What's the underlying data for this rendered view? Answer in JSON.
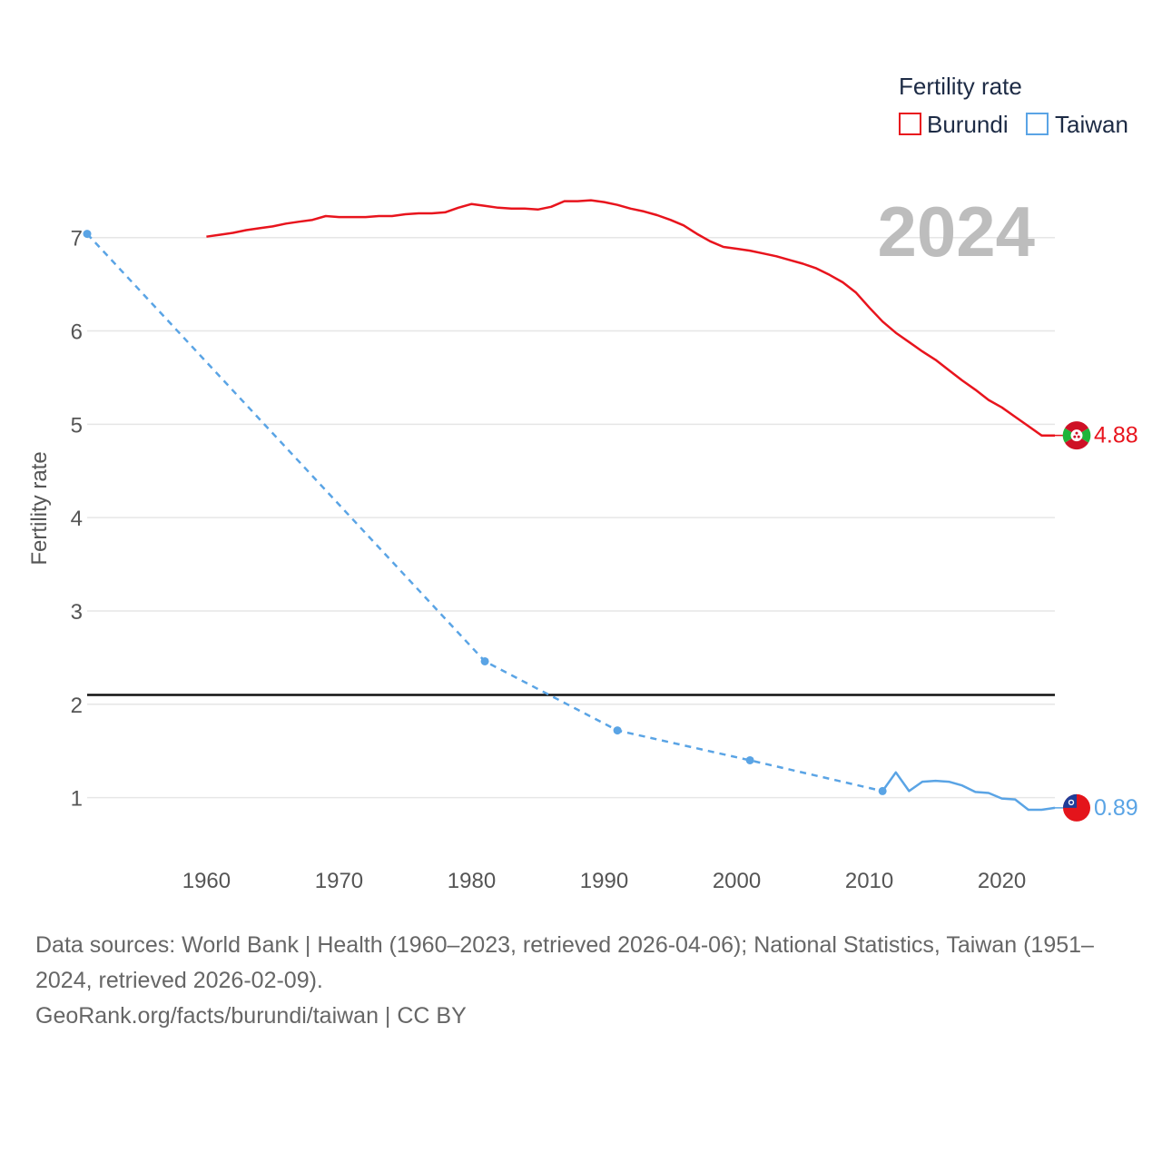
{
  "chart_data": {
    "type": "line",
    "title": "Fertility rate",
    "ylabel": "Fertility rate",
    "xlabel": "",
    "xlim": [
      1951,
      2024
    ],
    "ylim": [
      0.5,
      7.6
    ],
    "x_ticks": [
      1960,
      1970,
      1980,
      1990,
      2000,
      2010,
      2020
    ],
    "y_ticks": [
      1,
      2,
      3,
      4,
      5,
      6,
      7
    ],
    "grid": true,
    "legend_position": "top-right",
    "current_year": "2024",
    "reference_line": 2.1,
    "series": [
      {
        "name": "Burundi",
        "color": "#e8141d",
        "end_label": "4.88",
        "flag": "burundi-flag",
        "points": [
          [
            1960,
            7.01
          ],
          [
            1961,
            7.03
          ],
          [
            1962,
            7.05
          ],
          [
            1963,
            7.08
          ],
          [
            1964,
            7.1
          ],
          [
            1965,
            7.12
          ],
          [
            1966,
            7.15
          ],
          [
            1967,
            7.17
          ],
          [
            1968,
            7.19
          ],
          [
            1969,
            7.23
          ],
          [
            1970,
            7.22
          ],
          [
            1971,
            7.22
          ],
          [
            1972,
            7.22
          ],
          [
            1973,
            7.23
          ],
          [
            1974,
            7.23
          ],
          [
            1975,
            7.25
          ],
          [
            1976,
            7.26
          ],
          [
            1977,
            7.26
          ],
          [
            1978,
            7.27
          ],
          [
            1979,
            7.32
          ],
          [
            1980,
            7.36
          ],
          [
            1981,
            7.34
          ],
          [
            1982,
            7.32
          ],
          [
            1983,
            7.31
          ],
          [
            1984,
            7.31
          ],
          [
            1985,
            7.3
          ],
          [
            1986,
            7.33
          ],
          [
            1987,
            7.39
          ],
          [
            1988,
            7.39
          ],
          [
            1989,
            7.4
          ],
          [
            1990,
            7.38
          ],
          [
            1991,
            7.35
          ],
          [
            1992,
            7.31
          ],
          [
            1993,
            7.28
          ],
          [
            1994,
            7.24
          ],
          [
            1995,
            7.19
          ],
          [
            1996,
            7.13
          ],
          [
            1997,
            7.04
          ],
          [
            1998,
            6.96
          ],
          [
            1999,
            6.9
          ],
          [
            2000,
            6.88
          ],
          [
            2001,
            6.86
          ],
          [
            2002,
            6.83
          ],
          [
            2003,
            6.8
          ],
          [
            2004,
            6.76
          ],
          [
            2005,
            6.72
          ],
          [
            2006,
            6.67
          ],
          [
            2007,
            6.6
          ],
          [
            2008,
            6.52
          ],
          [
            2009,
            6.41
          ],
          [
            2010,
            6.25
          ],
          [
            2011,
            6.1
          ],
          [
            2012,
            5.98
          ],
          [
            2013,
            5.88
          ],
          [
            2014,
            5.78
          ],
          [
            2015,
            5.69
          ],
          [
            2016,
            5.58
          ],
          [
            2017,
            5.47
          ],
          [
            2018,
            5.37
          ],
          [
            2019,
            5.26
          ],
          [
            2020,
            5.18
          ],
          [
            2021,
            5.08
          ],
          [
            2022,
            4.98
          ],
          [
            2023,
            4.88
          ],
          [
            2024,
            4.88
          ]
        ]
      },
      {
        "name": "Taiwan",
        "color": "#5aa4e5",
        "end_label": "0.89",
        "flag": "taiwan-flag",
        "dashed_points": [
          [
            1951,
            7.04
          ],
          [
            1981,
            2.46
          ],
          [
            1991,
            1.72
          ],
          [
            2001,
            1.4
          ],
          [
            2011,
            1.07
          ]
        ],
        "points": [
          [
            2011,
            1.07
          ],
          [
            2012,
            1.27
          ],
          [
            2013,
            1.07
          ],
          [
            2014,
            1.17
          ],
          [
            2015,
            1.18
          ],
          [
            2016,
            1.17
          ],
          [
            2017,
            1.13
          ],
          [
            2018,
            1.06
          ],
          [
            2019,
            1.05
          ],
          [
            2020,
            0.99
          ],
          [
            2021,
            0.98
          ],
          [
            2022,
            0.87
          ],
          [
            2023,
            0.87
          ],
          [
            2024,
            0.89
          ]
        ]
      }
    ]
  },
  "footer": {
    "sources": "Data sources: World Bank | Health (1960–2023, retrieved 2026-04-06); National Statistics, Taiwan (1951–2024, retrieved 2026-02-09).",
    "credit": "GeoRank.org/facts/burundi/taiwan | CC BY"
  }
}
